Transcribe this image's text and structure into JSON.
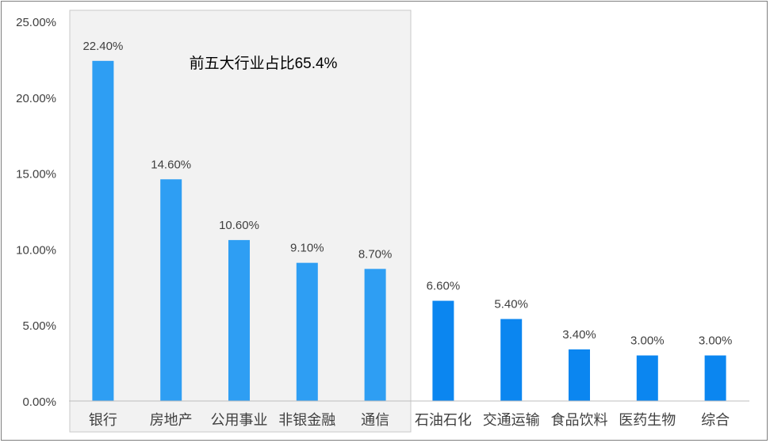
{
  "chart_data": {
    "type": "bar",
    "annotation": "前五大行业占比65.4%",
    "categories": [
      "银行",
      "房地产",
      "公用事业",
      "非银金融",
      "通信",
      "石油石化",
      "交通运输",
      "食品饮料",
      "医药生物",
      "综合"
    ],
    "values": [
      22.4,
      14.6,
      10.6,
      9.1,
      8.7,
      6.6,
      5.4,
      3.4,
      3.0,
      3.0
    ],
    "data_labels": [
      "22.40%",
      "14.60%",
      "10.60%",
      "9.10%",
      "8.70%",
      "6.60%",
      "5.40%",
      "3.40%",
      "3.00%",
      "3.00%"
    ],
    "yticks": [
      "0.00%",
      "5.00%",
      "10.00%",
      "15.00%",
      "20.00%",
      "25.00%"
    ],
    "ytick_values": [
      0,
      5,
      10,
      15,
      20,
      25
    ],
    "ylim": [
      0,
      25
    ],
    "highlight_count": 5,
    "colors": {
      "bar_top5": "#2e9ef3",
      "bar_rest": "#0b86f0",
      "highlight_fill": "#f2f2f2",
      "highlight_border": "#c9c9c9",
      "text": "#404040",
      "annotation": "#000000",
      "axis": "#bfbfbf"
    },
    "grid": false,
    "legend": "none"
  }
}
